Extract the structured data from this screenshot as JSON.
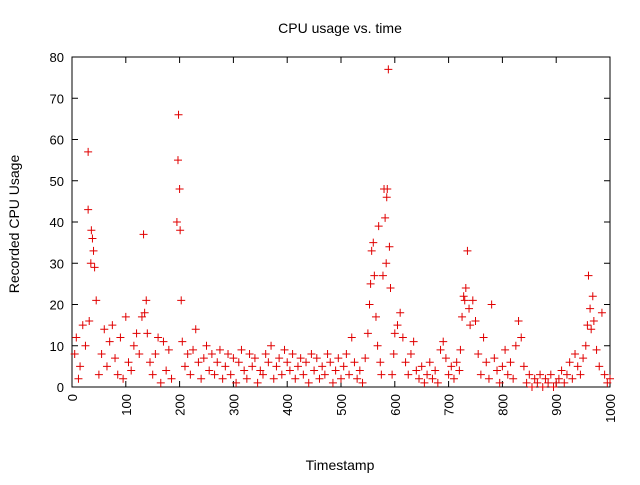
{
  "chart_data": {
    "type": "scatter",
    "title": "CPU usage vs. time",
    "xlabel": "Timestamp",
    "ylabel": "Recorded CPU Usage",
    "xlim": [
      0,
      1000
    ],
    "ylim": [
      0,
      80
    ],
    "x_ticks": [
      "0",
      "100",
      "200",
      "300",
      "400",
      "500",
      "600",
      "700",
      "800",
      "900",
      "1000"
    ],
    "y_ticks": [
      "0",
      "10",
      "20",
      "30",
      "40",
      "50",
      "60",
      "70",
      "80"
    ],
    "grid": false,
    "legend": false,
    "marker": "plus",
    "color": "#e00000",
    "series": [
      {
        "x": [
          5,
          8,
          12,
          15,
          20,
          25,
          30,
          30,
          32,
          35,
          36,
          38,
          40,
          42,
          45,
          50,
          55,
          60,
          65,
          70,
          75,
          80,
          85,
          90,
          95,
          100,
          105,
          110,
          115,
          120,
          125,
          130,
          133,
          135,
          138,
          140,
          145,
          150,
          155,
          160,
          165,
          170,
          175,
          180,
          185,
          195,
          197,
          198,
          200,
          201,
          203,
          205,
          210,
          215,
          220,
          225,
          230,
          235,
          240,
          245,
          250,
          255,
          260,
          265,
          270,
          275,
          280,
          285,
          290,
          295,
          300,
          305,
          310,
          315,
          320,
          325,
          330,
          335,
          340,
          345,
          350,
          355,
          360,
          365,
          370,
          375,
          380,
          385,
          390,
          395,
          400,
          405,
          410,
          415,
          420,
          425,
          430,
          435,
          440,
          445,
          450,
          455,
          460,
          465,
          470,
          475,
          480,
          485,
          490,
          495,
          500,
          505,
          510,
          515,
          520,
          525,
          530,
          535,
          540,
          545,
          550,
          553,
          555,
          557,
          560,
          562,
          565,
          568,
          570,
          573,
          575,
          578,
          580,
          582,
          584,
          585,
          586,
          588,
          590,
          592,
          595,
          598,
          600,
          605,
          610,
          615,
          620,
          625,
          630,
          635,
          640,
          645,
          650,
          655,
          660,
          665,
          670,
          675,
          680,
          685,
          690,
          695,
          700,
          705,
          710,
          715,
          720,
          722,
          725,
          728,
          730,
          732,
          735,
          738,
          740,
          745,
          750,
          755,
          760,
          765,
          770,
          775,
          780,
          785,
          790,
          795,
          800,
          805,
          810,
          815,
          820,
          825,
          830,
          835,
          840,
          845,
          850,
          855,
          860,
          865,
          870,
          875,
          880,
          885,
          890,
          895,
          900,
          905,
          910,
          915,
          920,
          925,
          930,
          935,
          940,
          945,
          950,
          955,
          958,
          960,
          963,
          965,
          968,
          970,
          975,
          980,
          985,
          990,
          995,
          1000
        ],
        "y": [
          8,
          12,
          2,
          5,
          15,
          10,
          57,
          43,
          16,
          30,
          38,
          36,
          33,
          29,
          21,
          3,
          8,
          14,
          5,
          11,
          15,
          7,
          3,
          12,
          2,
          17,
          6,
          4,
          10,
          13,
          8,
          17,
          37,
          18,
          21,
          13,
          6,
          3,
          8,
          12,
          1,
          11,
          4,
          9,
          2,
          40,
          55,
          66,
          48,
          38,
          21,
          11,
          5,
          8,
          3,
          9,
          14,
          6,
          2,
          7,
          10,
          4,
          8,
          3,
          6,
          9,
          2,
          5,
          8,
          3,
          7,
          1,
          6,
          9,
          4,
          2,
          8,
          5,
          7,
          1,
          4,
          3,
          8,
          6,
          10,
          2,
          5,
          7,
          3,
          9,
          6,
          4,
          8,
          2,
          5,
          7,
          3,
          6,
          1,
          8,
          4,
          7,
          2,
          5,
          3,
          8,
          6,
          1,
          4,
          7,
          2,
          5,
          8,
          3,
          12,
          6,
          2,
          4,
          1,
          7,
          13,
          20,
          25,
          33,
          35,
          27,
          17,
          10,
          39,
          6,
          3,
          27,
          48,
          41,
          30,
          46,
          48,
          77,
          34,
          24,
          3,
          8,
          13,
          15,
          18,
          12,
          6,
          3,
          8,
          11,
          4,
          2,
          5,
          1,
          3,
          6,
          2,
          4,
          1,
          9,
          11,
          7,
          3,
          5,
          2,
          6,
          4,
          9,
          17,
          22,
          21,
          24,
          33,
          19,
          15,
          21,
          16,
          8,
          3,
          12,
          6,
          2,
          20,
          7,
          4,
          1,
          5,
          9,
          3,
          6,
          2,
          10,
          16,
          12,
          5,
          1,
          3,
          0,
          2,
          1,
          3,
          0,
          2,
          1,
          3,
          0,
          1,
          2,
          4,
          1,
          3,
          6,
          2,
          8,
          5,
          3,
          7,
          10,
          15,
          27,
          19,
          14,
          22,
          16,
          9,
          5,
          18,
          3,
          1,
          2
        ]
      }
    ]
  }
}
